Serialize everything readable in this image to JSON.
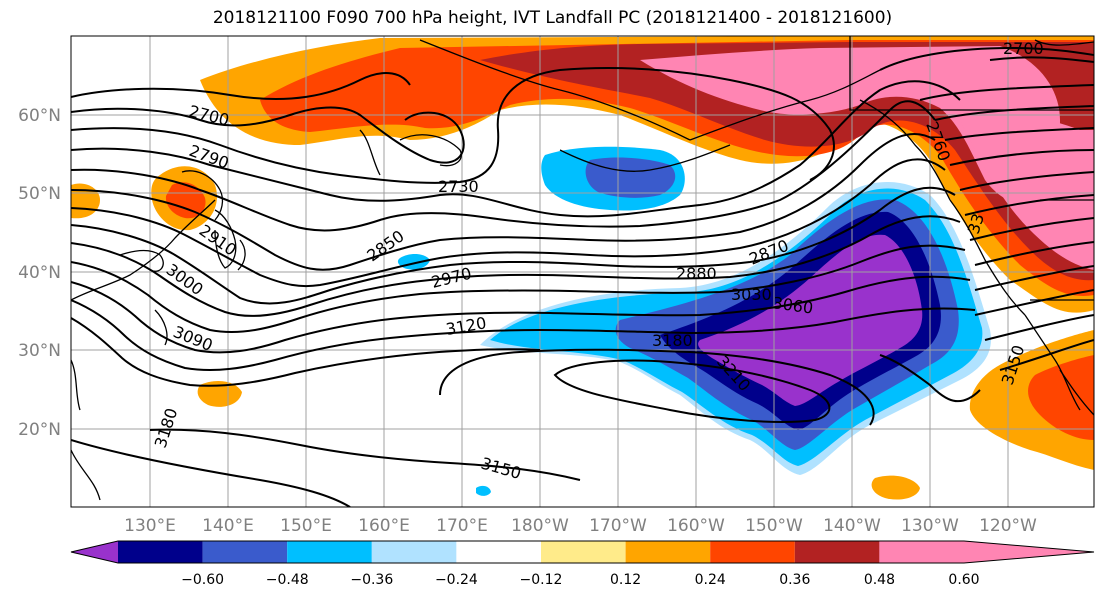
{
  "title": "2018121100 F090 700 hPa height, IVT Landfall PC (2018121400 - 2018121600)",
  "map": {
    "projection": "PlateCarree",
    "lon_range": [
      "120°E",
      "245°E"
    ],
    "lat_range": [
      "10°N",
      "70°N"
    ],
    "gridlines": true,
    "coastlines": true,
    "lat_labels": [
      "60°N",
      "50°N",
      "40°N",
      "30°N",
      "20°N"
    ],
    "lon_labels": [
      "130°E",
      "140°E",
      "150°E",
      "160°E",
      "170°E",
      "180°W",
      "170°W",
      "160°W",
      "150°W",
      "140°W",
      "130°W",
      "120°W"
    ],
    "contour_field": "700 hPa height",
    "contour_labels": [
      {
        "text": "2700",
        "id": "c2700a"
      },
      {
        "text": "2700",
        "id": "c2700b"
      },
      {
        "text": "2790",
        "id": "c2790"
      },
      {
        "text": "2730",
        "id": "c2730"
      },
      {
        "text": "2910",
        "id": "c2910"
      },
      {
        "text": "2850",
        "id": "c2850"
      },
      {
        "text": "2760",
        "id": "c2760"
      },
      {
        "text": "2970",
        "id": "c2970"
      },
      {
        "text": "2880",
        "id": "c2880"
      },
      {
        "text": "2870",
        "id": "c2870"
      },
      {
        "text": "3000",
        "id": "c3000"
      },
      {
        "text": "3030",
        "id": "c3030"
      },
      {
        "text": "3060",
        "id": "c3060"
      },
      {
        "text": "3120",
        "id": "c3120"
      },
      {
        "text": "3180",
        "id": "c3180a"
      },
      {
        "text": "3090",
        "id": "c3090"
      },
      {
        "text": "3210",
        "id": "c3210"
      },
      {
        "text": "3150",
        "id": "c3150a"
      },
      {
        "text": "3180",
        "id": "c3180b"
      },
      {
        "text": "3150",
        "id": "c3150b"
      },
      {
        "text": "33",
        "id": "c33"
      }
    ]
  },
  "colorbar": {
    "field": "IVT Landfall PC",
    "extend": "both",
    "ticks": [
      "−0.60",
      "−0.48",
      "−0.36",
      "−0.24",
      "−0.12",
      "0.12",
      "0.24",
      "0.36",
      "0.48",
      "0.60"
    ],
    "colors": [
      "#9932cc",
      "#00008b",
      "#3a5bcc",
      "#00bfff",
      "#b0e2ff",
      "#ffffff",
      "#ffeb8a",
      "#ffa500",
      "#ff4500",
      "#b22222",
      "#ff85b3"
    ]
  }
}
